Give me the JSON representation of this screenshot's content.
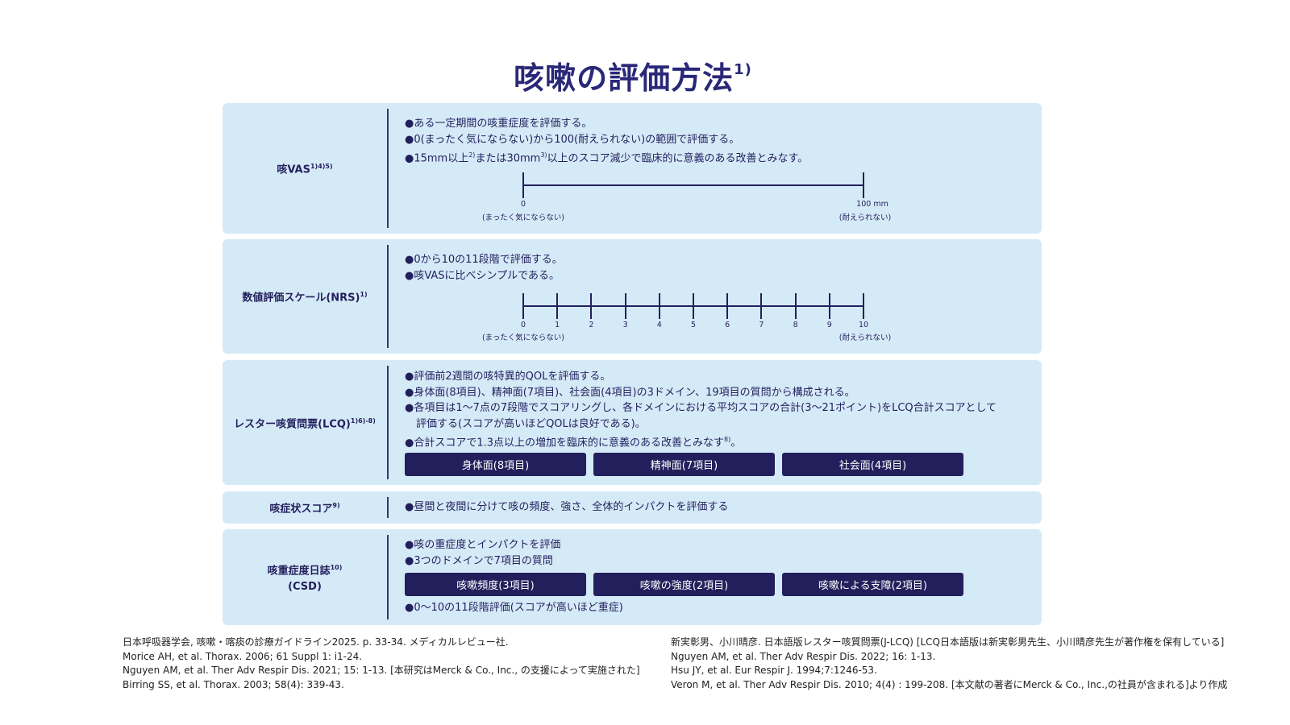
{
  "title": {
    "text": "咳嗽の評価方法",
    "sup": "1)"
  },
  "sections": [
    {
      "label": "咳VAS",
      "label_sup": "1)4)5)",
      "bullets": [
        "●ある一定期間の咳重症度を評価する。",
        "●0(まったく気にならない)から100(耐えられない)の範囲で評価する。"
      ],
      "bullet3": {
        "a": "●15mm以上",
        "s1": "2)",
        "b": "または30mm",
        "s2": "3)",
        "c": "以上のスコア減少で臨床的に意義のある改善とみなす。"
      },
      "scale": {
        "min_label": "0",
        "min_caption": "(まったく気にならない)",
        "max_label": "100 mm",
        "max_caption": "(耐えられない)"
      }
    },
    {
      "label": "数値評価スケール(NRS)",
      "label_sup": "1)",
      "bullets": [
        "●0から10の11段階で評価する。",
        "●咳VASに比べシンプルである。"
      ],
      "ticks": [
        "0",
        "1",
        "2",
        "3",
        "4",
        "5",
        "6",
        "7",
        "8",
        "9",
        "10"
      ],
      "min_caption": "(まったく気にならない)",
      "max_caption": "(耐えられない)"
    },
    {
      "label": "レスター咳質問票(LCQ)",
      "label_sup": "1)6)-8)",
      "bullets": [
        "●評価前2週間の咳特異的QOLを評価する。",
        "●身体面(8項目)、精神面(7項目)、社会面(4項目)の3ドメイン、19項目の質問から構成される。",
        "●各項目は1～7点の7段階でスコアリングし、各ドメインにおける平均スコアの合計(3～21ポイント)をLCQ合計スコアとして",
        "評価する(スコアが高いほどQOLは良好である)。"
      ],
      "bullet5": {
        "a": "●合計スコアで1.3点以上の増加を臨床的に意義のある改善とみなす",
        "s": "8)",
        "b": "。"
      },
      "buttons": [
        "身体面(8項目)",
        "精神面(7項目)",
        "社会面(4項目)"
      ]
    },
    {
      "label": "咳症状スコア",
      "label_sup": "9)",
      "bullets": [
        "●昼間と夜間に分けて咳の頻度、強さ、全体的インパクトを評価する"
      ]
    },
    {
      "label": "咳重症度日誌",
      "label_sup": "10)",
      "label2": "(CSD)",
      "bullets": [
        "●咳の重症度とインパクトを評価",
        "●3つのドメインで7項目の質問"
      ],
      "buttons": [
        "咳嗽頻度(3項目)",
        "咳嗽の強度(2項目)",
        "咳嗽による支障(2項目)"
      ],
      "after": "●0～10の11段階評価(スコアが高いほど重症)"
    }
  ],
  "references_left": [
    "日本呼吸器学会, 咳嗽・喀痰の診療ガイドライン2025. p. 33-34. メディカルレビュー社.",
    "Morice AH, et al. Thorax. 2006; 61 Suppl 1: i1-24.",
    "Nguyen AM, et al. Ther Adv Respir Dis. 2021; 15: 1-13. [本研究はMerck & Co., Inc., の支援によって実施された]",
    "Birring SS, et al. Thorax. 2003; 58(4): 339-43."
  ],
  "references_right": [
    "新実彰男、小川晴彦. 日本語版レスター咳質問票(J-LCQ) [LCQ日本語版は新実彰男先生、小川晴彦先生が著作権を保有している]",
    "Nguyen AM, et al. Ther Adv Respir Dis. 2022; 16: 1-13.",
    "Hsu JY, et al. Eur Respir J. 1994;7:1246-53.",
    "Veron M, et al. Ther Adv Respir Dis. 2010; 4(4) : 199-208. [本文献の著者にMerck & Co., Inc.,の社員が含まれる]より作成"
  ],
  "colors": {
    "navy": "#231f5c",
    "panel": "#d5eaf7",
    "title": "#2a2878"
  }
}
